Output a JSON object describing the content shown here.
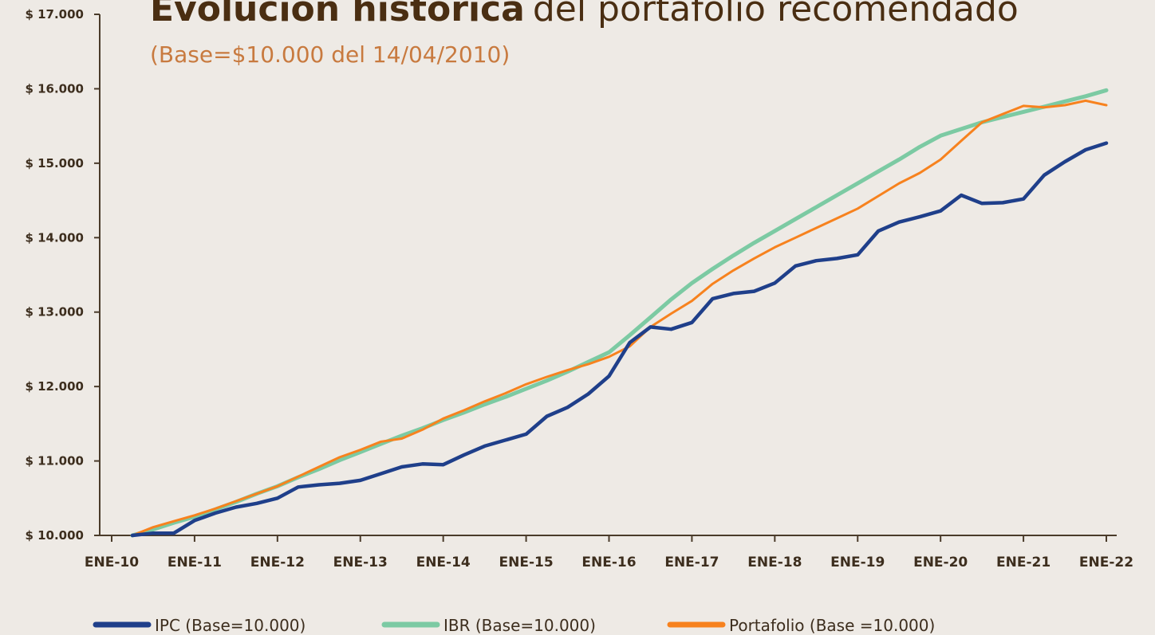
{
  "chart_data": {
    "type": "line",
    "title": [
      "Evolución histórica",
      "del portafolio recomendado"
    ],
    "subtitle": "(Base=$10.000 del 14/04/2010)",
    "categories": [
      "ENE-10",
      null,
      null,
      null,
      "ENE-11",
      null,
      null,
      null,
      "ENE-12",
      null,
      null,
      null,
      "ENE-13",
      null,
      null,
      null,
      "ENE-14",
      null,
      null,
      null,
      "ENE-15",
      null,
      null,
      null,
      "ENE-16",
      null,
      null,
      null,
      "ENE-17",
      null,
      null,
      null,
      "ENE-18",
      null,
      null,
      null,
      "ENE-19",
      null,
      null,
      null,
      "ENE-20",
      null,
      null,
      null,
      "ENE-21",
      null,
      null,
      null,
      "ENE-22"
    ],
    "series": [
      {
        "name": "IPC (Base=10.000)",
        "color": "#1f3f8a",
        "values": [
          null,
          10000,
          10030,
          10030,
          10200,
          10300,
          10380,
          10430,
          10500,
          10650,
          10680,
          10700,
          10740,
          10830,
          10920,
          10960,
          10950,
          11080,
          11200,
          11280,
          11360,
          11600,
          11720,
          11900,
          12140,
          12590,
          12800,
          12770,
          12860,
          13180,
          13250,
          13280,
          13390,
          13620,
          13690,
          13720,
          13770,
          14090,
          14210,
          14280,
          14360,
          14570,
          14460,
          14470,
          14520,
          14840,
          15020,
          15180,
          15270
        ]
      },
      {
        "name": "IBR (Base=10.000)",
        "color": "#7ccaa3",
        "values": [
          null,
          10000,
          10080,
          10170,
          10250,
          10350,
          10450,
          10560,
          10660,
          10780,
          10890,
          11010,
          11120,
          11230,
          11340,
          11440,
          11550,
          11650,
          11760,
          11860,
          11970,
          12080,
          12200,
          12330,
          12460,
          12690,
          12930,
          13170,
          13390,
          13580,
          13760,
          13930,
          14090,
          14250,
          14410,
          14570,
          14730,
          14890,
          15050,
          15220,
          15370,
          15460,
          15550,
          15620,
          15690,
          15760,
          15830,
          15900,
          15980
        ]
      },
      {
        "name": "Portafolio (Base =10.000)",
        "color": "#f7821e",
        "values": [
          null,
          10000,
          10110,
          10190,
          10270,
          10360,
          10460,
          10560,
          10660,
          10790,
          10920,
          11050,
          11150,
          11260,
          11300,
          11420,
          11570,
          11680,
          11800,
          11910,
          12030,
          12130,
          12220,
          12300,
          12400,
          12540,
          12800,
          12980,
          13150,
          13380,
          13560,
          13720,
          13870,
          14000,
          14130,
          14260,
          14390,
          14560,
          14730,
          14870,
          15050,
          15300,
          15550,
          15660,
          15770,
          15750,
          15780,
          15840,
          15780
        ]
      }
    ],
    "ylim": [
      10000,
      17000
    ],
    "yticks": [
      {
        "value": 10000,
        "label": "$ 10.000"
      },
      {
        "value": 11000,
        "label": "$ 11.000"
      },
      {
        "value": 12000,
        "label": "$ 12.000"
      },
      {
        "value": 13000,
        "label": "$ 13.000"
      },
      {
        "value": 14000,
        "label": "$ 14.000"
      },
      {
        "value": 15000,
        "label": "$ 15.000"
      },
      {
        "value": 16000,
        "label": "$ 16.000"
      },
      {
        "value": 17000,
        "label": "$ 17.000"
      }
    ],
    "legend": "bottom"
  }
}
